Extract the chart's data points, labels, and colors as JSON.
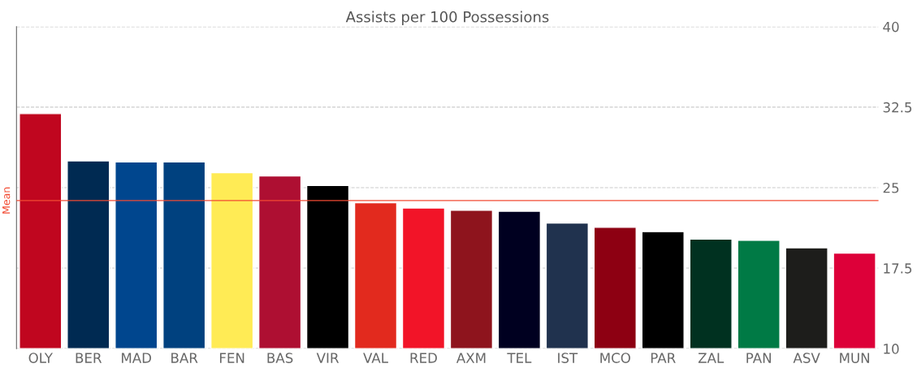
{
  "chart_data": {
    "type": "bar",
    "title": "Assists per 100 Possessions",
    "categories": [
      "OLY",
      "BER",
      "MAD",
      "BAR",
      "FEN",
      "BAS",
      "VIR",
      "VAL",
      "RED",
      "AXM",
      "TEL",
      "IST",
      "MCO",
      "PAR",
      "ZAL",
      "PAN",
      "ASV",
      "MUN"
    ],
    "values": [
      31.9,
      27.5,
      27.4,
      27.4,
      26.4,
      26.1,
      25.2,
      23.6,
      23.1,
      22.9,
      22.8,
      21.7,
      21.3,
      20.9,
      20.2,
      20.1,
      19.4,
      18.9
    ],
    "colors": [
      "#c0061f",
      "#002a52",
      "#00468e",
      "#00417f",
      "#ffeb55",
      "#ae0f32",
      "#000000",
      "#e22a1e",
      "#f21428",
      "#8e141d",
      "#000020",
      "#20324e",
      "#8d0012",
      "#000000",
      "#003120",
      "#007a45",
      "#1d1d1b",
      "#dd0039"
    ],
    "ylim": [
      10,
      40
    ],
    "yticks": [
      10,
      17.5,
      25,
      32.5,
      40
    ],
    "grid": "y",
    "ref_lines": [
      {
        "axis": "y",
        "value": 23.8,
        "label": "Mean",
        "color": "#f24b33"
      }
    ]
  }
}
